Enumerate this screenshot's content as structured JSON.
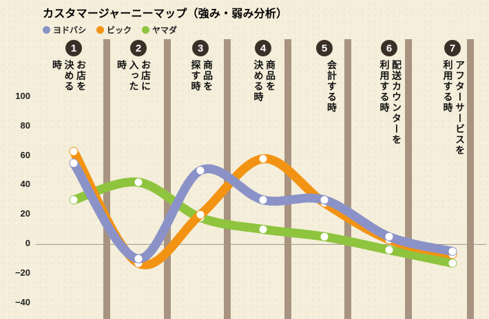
{
  "title": "カスタマージャーニーマップ（強み・弱み分析）",
  "legend": {
    "position": "top-left",
    "items": [
      {
        "key": "yodobashi",
        "label": "ヨドバシ",
        "color": "#8a92c8"
      },
      {
        "key": "bic",
        "label": "ビック",
        "color": "#f39313"
      },
      {
        "key": "yamada",
        "label": "ヤマダ",
        "color": "#8fc43f"
      }
    ]
  },
  "chart_data": {
    "type": "line",
    "title": "カスタマージャーニーマップ（強み・弱み分析）",
    "xlabel": "",
    "ylabel": "",
    "grid": "zero-line-only",
    "ylim": [
      -40,
      100
    ],
    "y_ticks": [
      100,
      80,
      60,
      40,
      20,
      0,
      -20,
      -40
    ],
    "x_stages": [
      {
        "number": "1",
        "label": "お店を\n決める\n時"
      },
      {
        "number": "2",
        "label": "お店に\n入った\n時"
      },
      {
        "number": "3",
        "label": "商品を\n探す時"
      },
      {
        "number": "4",
        "label": "商品を\n決める時"
      },
      {
        "number": "5",
        "label": "会計する時"
      },
      {
        "number": "6",
        "label": "配送カウンターを\n利用する時"
      },
      {
        "number": "7",
        "label": "アフターサービスを\n利用する時"
      }
    ],
    "series": [
      {
        "key": "yodobashi",
        "name": "ヨドバシ",
        "color": "#8a92c8",
        "values": [
          55,
          -10,
          50,
          30,
          30,
          5,
          -5
        ]
      },
      {
        "key": "bic",
        "name": "ビック",
        "color": "#f39313",
        "values": [
          63,
          -13,
          20,
          58,
          28,
          3,
          -7
        ]
      },
      {
        "key": "yamada",
        "name": "ヤマダ",
        "color": "#8fc43f",
        "values": [
          30,
          42,
          18,
          10,
          5,
          -4,
          -13
        ]
      }
    ],
    "colors": {
      "background": "#f4eeda",
      "divider_bar": "#a79380",
      "badge": "#3a3028",
      "point": "#ffffff"
    }
  }
}
